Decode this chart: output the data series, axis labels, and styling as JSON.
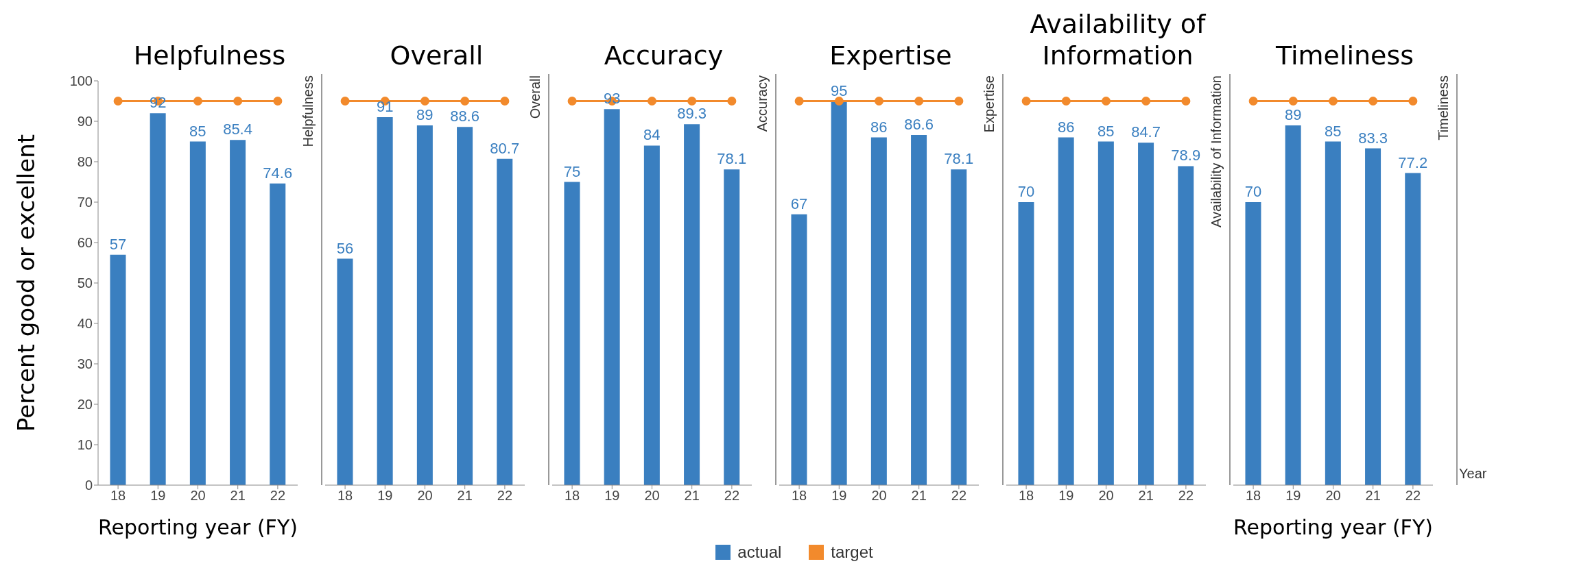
{
  "chart_data": [
    {
      "type": "bar",
      "title": "Helpfulness",
      "xlabel": "Reporting year (FY)",
      "ylabel": "Percent good or excellent",
      "categories": [
        "18",
        "19",
        "20",
        "21",
        "22"
      ],
      "ylim": [
        0,
        100
      ],
      "yticks": [
        0,
        10,
        20,
        30,
        40,
        50,
        60,
        70,
        80,
        90,
        100
      ],
      "annotations": [
        "Helpfulness"
      ],
      "legend": false,
      "series": [
        {
          "color": "#3a7fc0",
          "values": [
            57,
            92,
            85,
            85.4,
            74.6
          ],
          "value_labels": [
            "57",
            "92",
            "85",
            "85.4",
            "74.6"
          ]
        },
        {
          "type": "line",
          "color": "#f28a2c",
          "values": [
            95,
            95,
            95,
            95,
            95
          ],
          "marker": "circle"
        }
      ]
    },
    {
      "type": "bar",
      "title": "Overall",
      "categories": [
        "18",
        "19",
        "20",
        "21",
        "22"
      ],
      "ylim": [
        0,
        100
      ],
      "tick_labels": "x",
      "annotations": [
        "Overall"
      ],
      "legend": false,
      "series": [
        {
          "color": "#3a7fc0",
          "values": [
            56,
            91,
            89,
            88.6,
            80.7
          ],
          "value_labels": [
            "56",
            "91",
            "89",
            "88.6",
            "80.7"
          ]
        },
        {
          "type": "line",
          "color": "#f28a2c",
          "values": [
            95,
            95,
            95,
            95,
            95
          ],
          "marker": "circle"
        }
      ]
    },
    {
      "type": "bar",
      "title": "Accuracy",
      "categories": [
        "18",
        "19",
        "20",
        "21",
        "22"
      ],
      "ylim": [
        0,
        100
      ],
      "tick_labels": "x",
      "annotations": [
        "Accuracy"
      ],
      "legend": "bottom",
      "series": [
        {
          "name": "actual",
          "color": "#3a7fc0",
          "values": [
            75,
            93,
            84,
            89.3,
            78.1
          ],
          "value_labels": [
            "75",
            "93",
            "84",
            "89.3",
            "78.1"
          ]
        },
        {
          "name": "target",
          "type": "line",
          "color": "#f28a2c",
          "values": [
            95,
            95,
            95,
            95,
            95
          ],
          "marker": "circle"
        }
      ]
    },
    {
      "type": "bar",
      "title": "Expertise",
      "categories": [
        "18",
        "19",
        "20",
        "21",
        "22"
      ],
      "ylim": [
        0,
        100
      ],
      "tick_labels": "x",
      "annotations": [
        "Expertise"
      ],
      "legend": false,
      "series": [
        {
          "color": "#3a7fc0",
          "values": [
            67,
            95,
            86,
            86.6,
            78.1
          ],
          "value_labels": [
            "67",
            "95",
            "86",
            "86.6",
            "78.1"
          ]
        },
        {
          "type": "line",
          "color": "#f28a2c",
          "values": [
            95,
            95,
            95,
            95,
            95
          ],
          "marker": "circle"
        }
      ]
    },
    {
      "type": "bar",
      "title": "Availability of Information",
      "categories": [
        "18",
        "19",
        "20",
        "21",
        "22"
      ],
      "ylim": [
        0,
        100
      ],
      "tick_labels": "x",
      "annotations": [
        "Availability of Information"
      ],
      "legend": false,
      "series": [
        {
          "color": "#3a7fc0",
          "values": [
            70,
            86,
            85,
            84.7,
            78.9
          ],
          "value_labels": [
            "70",
            "86",
            "85",
            "84.7",
            "78.9"
          ]
        },
        {
          "type": "line",
          "color": "#f28a2c",
          "values": [
            95,
            95,
            95,
            95,
            95
          ],
          "marker": "circle"
        }
      ]
    },
    {
      "type": "bar",
      "title": "Timeliness",
      "xlabel": "Reporting year (FY)",
      "categories": [
        "18",
        "19",
        "20",
        "21",
        "22"
      ],
      "ylim": [
        0,
        100
      ],
      "tick_labels": "x",
      "annotations": [
        "Timeliness",
        "Year"
      ],
      "legend": false,
      "series": [
        {
          "color": "#3a7fc0",
          "values": [
            70,
            89,
            85,
            83.3,
            77.2
          ],
          "value_labels": [
            "70",
            "89",
            "85",
            "83.3",
            "77.2"
          ]
        },
        {
          "type": "line",
          "color": "#f28a2c",
          "values": [
            95,
            95,
            95,
            95,
            95
          ],
          "marker": "circle"
        }
      ]
    }
  ]
}
